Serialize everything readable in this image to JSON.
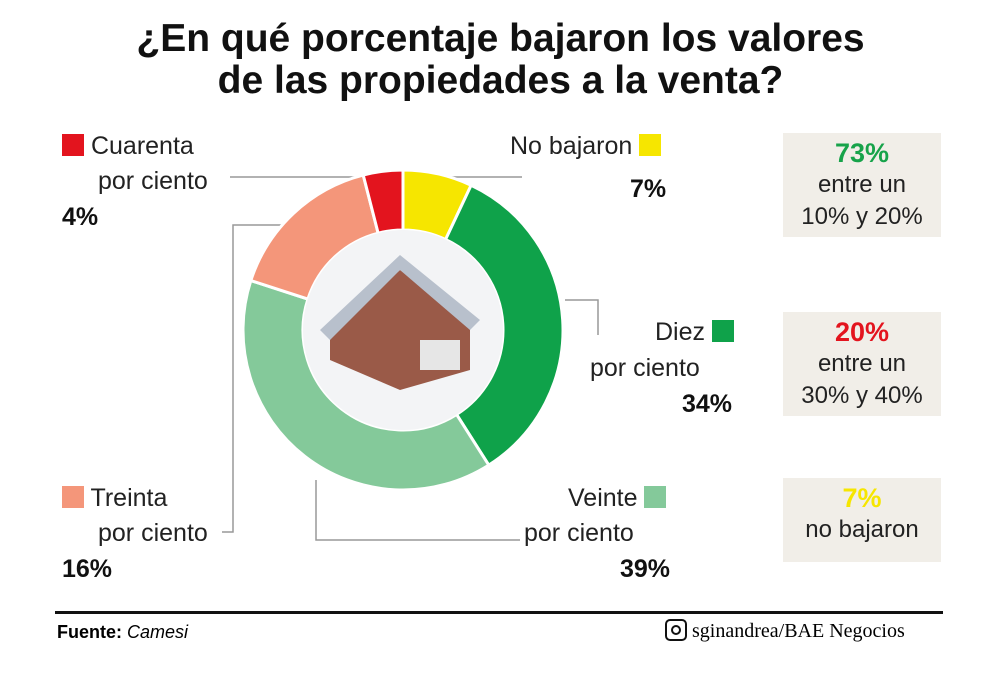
{
  "chart_data": {
    "type": "pie",
    "title": "¿En qué porcentaje bajaron los valores de las propiedades a la venta?",
    "title_lines": [
      "¿En qué porcentaje bajaron los valores",
      "de las propiedades a la venta?"
    ],
    "slices": [
      {
        "label_line1": "No bajaron",
        "label_line2": "",
        "value": 7,
        "pct": "7%",
        "color": "#f6e600"
      },
      {
        "label_line1": "Diez",
        "label_line2": "por ciento",
        "value": 34,
        "pct": "34%",
        "color": "#0fa24a"
      },
      {
        "label_line1": "Veinte",
        "label_line2": "por ciento",
        "value": 39,
        "pct": "39%",
        "color": "#84c99a"
      },
      {
        "label_line1": "Treinta",
        "label_line2": "por ciento",
        "value": 16,
        "pct": "16%",
        "color": "#f4967a"
      },
      {
        "label_line1": "Cuarenta",
        "label_line2": "por ciento",
        "value": 4,
        "pct": "4%",
        "color": "#e3141e"
      }
    ]
  },
  "summary": [
    {
      "big": "73%",
      "line1": "entre un",
      "line2": "10% y 20%",
      "color": "#17a34a"
    },
    {
      "big": "20%",
      "line1": "entre un",
      "line2": "30% y 40%",
      "color": "#e3141e"
    },
    {
      "big": "7%",
      "line1": "no bajaron",
      "line2": "",
      "color": "#f6e600"
    }
  ],
  "footer": {
    "source_label": "Fuente:",
    "source": "Camesi",
    "credit": "sginandrea/BAE Negocios"
  }
}
